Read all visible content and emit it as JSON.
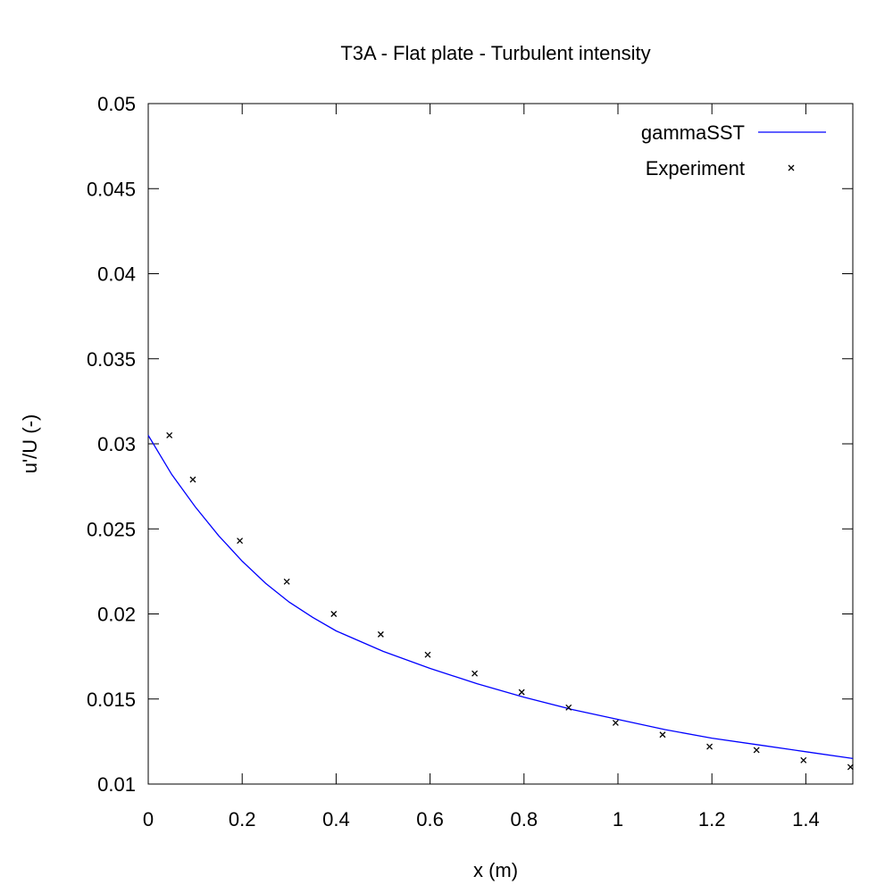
{
  "chart_data": {
    "type": "line",
    "title": "T3A - Flat plate - Turbulent intensity",
    "xlabel": "x (m)",
    "ylabel": "u'/U (-)",
    "xlim": [
      0,
      1.5
    ],
    "ylim": [
      0.01,
      0.05
    ],
    "xticks": [
      "0",
      "0.2",
      "0.4",
      "0.6",
      "0.8",
      "1",
      "1.2",
      "1.4"
    ],
    "yticks": [
      "0.01",
      "0.015",
      "0.02",
      "0.025",
      "0.03",
      "0.035",
      "0.04",
      "0.045",
      "0.05"
    ],
    "grid": false,
    "legend_position": "top-right",
    "series": [
      {
        "name": "gammaSST",
        "style": "line",
        "color": "#0000ff",
        "x": [
          0,
          0.05,
          0.1,
          0.15,
          0.2,
          0.25,
          0.3,
          0.35,
          0.4,
          0.5,
          0.6,
          0.7,
          0.8,
          0.9,
          1.0,
          1.1,
          1.2,
          1.3,
          1.4,
          1.5
        ],
        "y": [
          0.0305,
          0.0282,
          0.0263,
          0.0246,
          0.0231,
          0.0218,
          0.0207,
          0.0198,
          0.019,
          0.0178,
          0.0168,
          0.0159,
          0.0151,
          0.0144,
          0.0138,
          0.0132,
          0.0127,
          0.0123,
          0.0119,
          0.0115
        ]
      },
      {
        "name": "Experiment",
        "style": "points",
        "color": "#000000",
        "x": [
          0.045,
          0.095,
          0.195,
          0.295,
          0.395,
          0.495,
          0.595,
          0.695,
          0.795,
          0.895,
          0.995,
          1.095,
          1.195,
          1.295,
          1.395,
          1.495
        ],
        "y": [
          0.0305,
          0.0279,
          0.0243,
          0.0219,
          0.02,
          0.0188,
          0.0176,
          0.0165,
          0.0154,
          0.0145,
          0.0136,
          0.0129,
          0.0122,
          0.012,
          0.0114,
          0.011
        ]
      }
    ]
  }
}
